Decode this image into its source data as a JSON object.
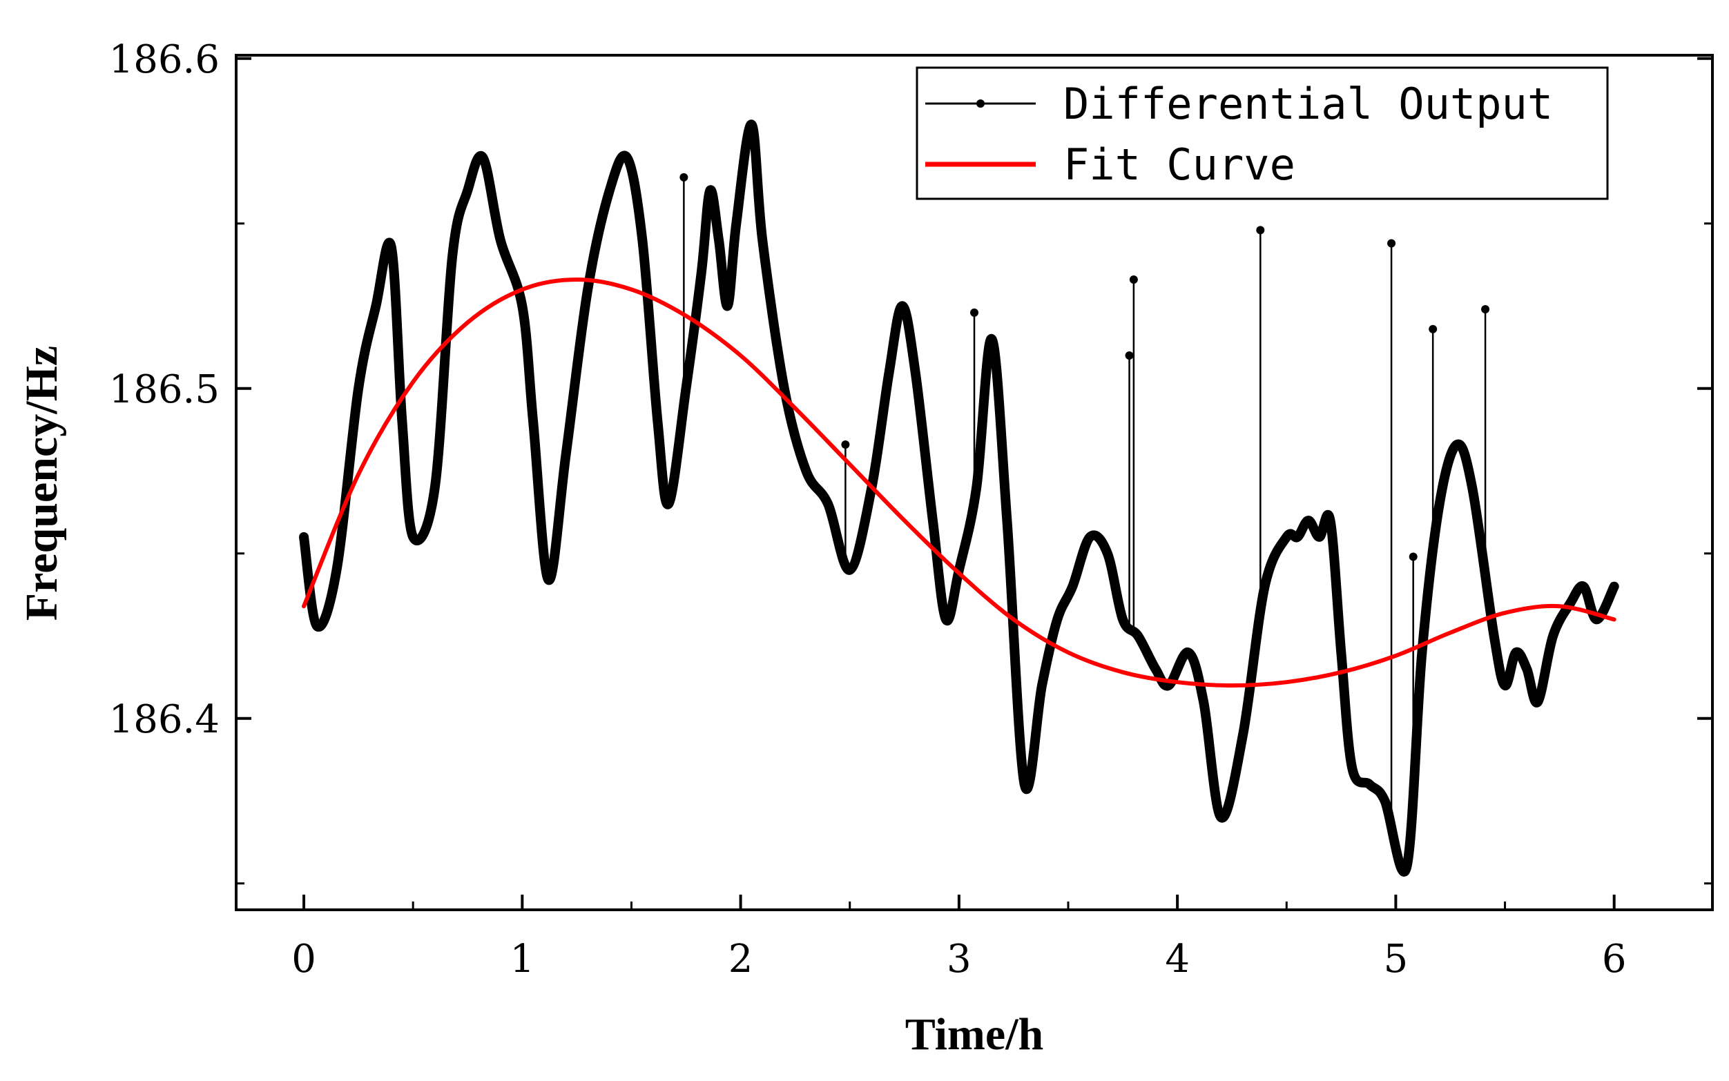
{
  "chart_data": {
    "type": "line",
    "title": "",
    "xlabel": "Time/h",
    "ylabel": "Frequency/Hz",
    "xlim": [
      -0.31,
      6.45
    ],
    "ylim": [
      186.342,
      186.601
    ],
    "x_ticks": [
      0,
      1,
      2,
      3,
      4,
      5,
      6
    ],
    "x_tick_labels": [
      "0",
      "1",
      "2",
      "3",
      "4",
      "5",
      "6"
    ],
    "y_ticks": [
      186.4,
      186.5,
      186.6
    ],
    "y_tick_labels": [
      "186.4",
      "186.5",
      "186.6"
    ],
    "y_minor_ticks": [
      186.35,
      186.45,
      186.55
    ],
    "x_minor_ticks": [
      0.5,
      1.5,
      2.5,
      3.5,
      4.5,
      5.5
    ],
    "grid": false,
    "legend_position": "top-right",
    "series": [
      {
        "name": "Differential Output",
        "color": "#000000",
        "style": "line-with-points",
        "x": [
          0.0,
          0.06,
          0.15,
          0.25,
          0.33,
          0.4,
          0.45,
          0.5,
          0.6,
          0.68,
          0.75,
          0.82,
          0.9,
          1.0,
          1.05,
          1.12,
          1.2,
          1.3,
          1.4,
          1.48,
          1.55,
          1.62,
          1.67,
          1.75,
          1.82,
          1.86,
          1.9,
          1.94,
          1.98,
          2.05,
          2.1,
          2.2,
          2.3,
          2.4,
          2.5,
          2.6,
          2.68,
          2.74,
          2.8,
          2.88,
          2.94,
          3.0,
          3.08,
          3.15,
          3.22,
          3.3,
          3.38,
          3.45,
          3.52,
          3.6,
          3.68,
          3.75,
          3.82,
          3.9,
          3.96,
          4.05,
          4.12,
          4.2,
          4.3,
          4.4,
          4.5,
          4.55,
          4.6,
          4.65,
          4.7,
          4.75,
          4.8,
          4.88,
          4.95,
          5.05,
          5.12,
          5.2,
          5.28,
          5.35,
          5.45,
          5.5,
          5.55,
          5.6,
          5.65,
          5.72,
          5.8,
          5.86,
          5.92,
          6.0
        ],
        "y": [
          186.455,
          186.428,
          186.445,
          186.5,
          186.525,
          186.543,
          186.49,
          186.455,
          186.47,
          186.54,
          186.56,
          186.57,
          186.545,
          186.525,
          186.49,
          186.442,
          186.48,
          186.53,
          186.56,
          186.57,
          186.545,
          186.49,
          186.465,
          186.5,
          186.535,
          186.56,
          186.545,
          186.525,
          186.55,
          186.58,
          186.545,
          186.5,
          186.475,
          186.465,
          186.445,
          186.47,
          186.505,
          186.525,
          186.505,
          186.46,
          186.43,
          186.445,
          186.47,
          186.515,
          186.46,
          186.38,
          186.41,
          186.43,
          186.44,
          186.455,
          186.45,
          186.43,
          186.425,
          186.415,
          186.41,
          186.42,
          186.405,
          186.37,
          186.395,
          186.44,
          186.455,
          186.455,
          186.46,
          186.455,
          186.46,
          186.42,
          186.385,
          186.38,
          186.375,
          186.355,
          186.42,
          186.465,
          186.483,
          186.47,
          186.425,
          186.41,
          186.42,
          186.415,
          186.405,
          186.425,
          186.435,
          186.44,
          186.43,
          186.44
        ]
      },
      {
        "name": "Fit Curve",
        "color": "#ff0000",
        "style": "line",
        "x": [
          0.0,
          0.25,
          0.5,
          0.75,
          1.0,
          1.25,
          1.5,
          1.75,
          2.0,
          2.25,
          2.5,
          2.75,
          3.0,
          3.25,
          3.5,
          3.75,
          4.0,
          4.25,
          4.5,
          4.75,
          5.0,
          5.25,
          5.5,
          5.75,
          6.0
        ],
        "y": [
          186.434,
          186.474,
          186.502,
          186.52,
          186.53,
          186.533,
          186.53,
          186.522,
          186.51,
          186.494,
          186.477,
          186.46,
          186.444,
          186.43,
          186.42,
          186.414,
          186.411,
          186.41,
          186.411,
          186.414,
          186.419,
          186.426,
          186.432,
          186.434,
          186.43
        ]
      }
    ],
    "spikes": [
      {
        "x": 1.74,
        "y": 186.564
      },
      {
        "x": 2.48,
        "y": 186.483
      },
      {
        "x": 3.07,
        "y": 186.523
      },
      {
        "x": 3.78,
        "y": 186.51
      },
      {
        "x": 3.8,
        "y": 186.533
      },
      {
        "x": 4.38,
        "y": 186.548
      },
      {
        "x": 4.98,
        "y": 186.544
      },
      {
        "x": 5.08,
        "y": 186.449
      },
      {
        "x": 5.17,
        "y": 186.518
      },
      {
        "x": 5.41,
        "y": 186.524
      }
    ]
  }
}
